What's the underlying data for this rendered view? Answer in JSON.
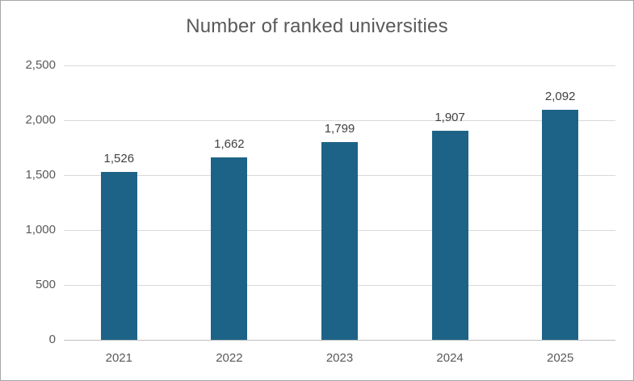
{
  "frame": {
    "background_color": "#ffffff",
    "border_color": "#a6a6a6"
  },
  "chart_data": {
    "type": "bar",
    "title": "Number of ranked universities",
    "categories": [
      "2021",
      "2022",
      "2023",
      "2024",
      "2025"
    ],
    "values": [
      1526,
      1662,
      1799,
      1907,
      2092
    ],
    "data_labels": [
      "1,526",
      "1,662",
      "1,799",
      "1,907",
      "2,092"
    ],
    "y_ticks": [
      0,
      500,
      1000,
      1500,
      2000,
      2500
    ],
    "y_tick_labels": [
      "0",
      "500",
      "1,000",
      "1,500",
      "2,000",
      "2,500"
    ],
    "ylim": [
      0,
      2500
    ],
    "xlabel": "",
    "ylabel": "",
    "grid": "horizontal",
    "legend_position": "none",
    "bar_color": "#1d6387",
    "title_color": "#595959",
    "tick_label_color": "#595959",
    "data_label_color": "#404040",
    "gridline_color": "#d9d9d9",
    "axis_line_color": "#bfbfbf"
  }
}
